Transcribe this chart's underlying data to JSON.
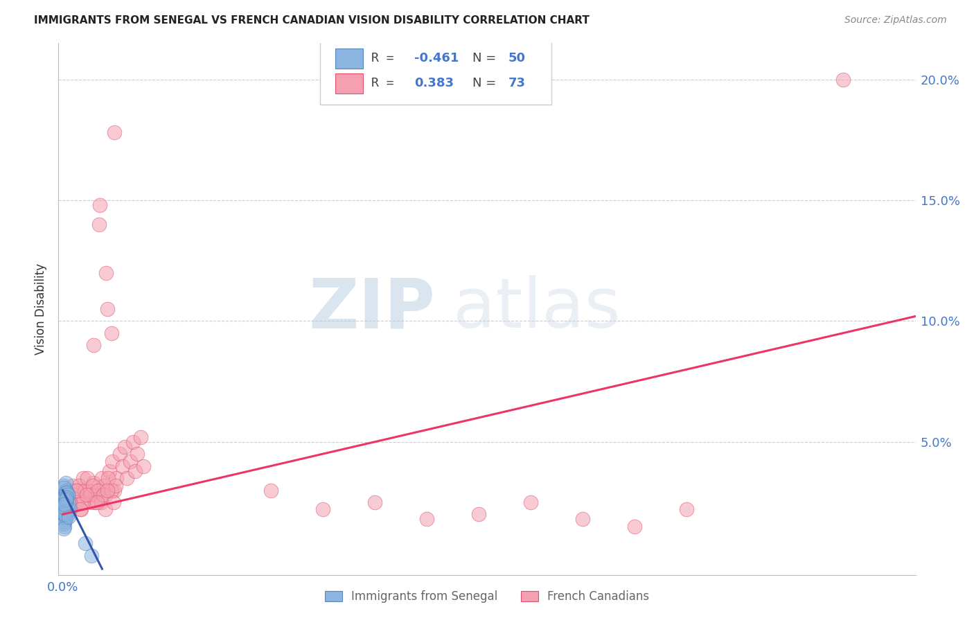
{
  "title": "IMMIGRANTS FROM SENEGAL VS FRENCH CANADIAN VISION DISABILITY CORRELATION CHART",
  "source": "Source: ZipAtlas.com",
  "ylabel": "Vision Disability",
  "yticks": [
    0.0,
    0.05,
    0.1,
    0.15,
    0.2
  ],
  "xlim": [
    -0.004,
    0.82
  ],
  "ylim": [
    -0.005,
    0.215
  ],
  "color_blue": "#8BB4E0",
  "color_pink": "#F4A0B0",
  "edge_blue": "#5588BB",
  "edge_pink": "#E05070",
  "trendline_blue": "#3355AA",
  "trendline_pink": "#EE3366",
  "watermark_color": "#C8D8E8",
  "blue_scatter": [
    [
      0.002,
      0.028
    ],
    [
      0.003,
      0.03
    ],
    [
      0.001,
      0.025
    ],
    [
      0.002,
      0.022
    ],
    [
      0.003,
      0.018
    ],
    [
      0.001,
      0.032
    ],
    [
      0.004,
      0.026
    ],
    [
      0.002,
      0.024
    ],
    [
      0.001,
      0.02
    ],
    [
      0.003,
      0.033
    ],
    [
      0.005,
      0.028
    ],
    [
      0.002,
      0.015
    ],
    [
      0.001,
      0.027
    ],
    [
      0.004,
      0.022
    ],
    [
      0.003,
      0.03
    ],
    [
      0.001,
      0.018
    ],
    [
      0.002,
      0.025
    ],
    [
      0.004,
      0.02
    ],
    [
      0.003,
      0.023
    ],
    [
      0.001,
      0.019
    ],
    [
      0.005,
      0.021
    ],
    [
      0.003,
      0.026
    ],
    [
      0.002,
      0.028
    ],
    [
      0.004,
      0.024
    ],
    [
      0.001,
      0.031
    ],
    [
      0.006,
      0.022
    ],
    [
      0.003,
      0.029
    ],
    [
      0.002,
      0.017
    ],
    [
      0.004,
      0.026
    ],
    [
      0.001,
      0.024
    ],
    [
      0.005,
      0.02
    ],
    [
      0.003,
      0.023
    ],
    [
      0.002,
      0.027
    ],
    [
      0.001,
      0.016
    ],
    [
      0.004,
      0.029
    ],
    [
      0.006,
      0.025
    ],
    [
      0.002,
      0.021
    ],
    [
      0.003,
      0.019
    ],
    [
      0.001,
      0.014
    ],
    [
      0.005,
      0.028
    ],
    [
      0.007,
      0.022
    ],
    [
      0.003,
      0.025
    ],
    [
      0.002,
      0.02
    ],
    [
      0.004,
      0.027
    ],
    [
      0.001,
      0.023
    ],
    [
      0.006,
      0.019
    ],
    [
      0.003,
      0.026
    ],
    [
      0.002,
      0.024
    ],
    [
      0.022,
      0.008
    ],
    [
      0.028,
      0.003
    ]
  ],
  "pink_scatter": [
    [
      0.005,
      0.03
    ],
    [
      0.008,
      0.028
    ],
    [
      0.01,
      0.032
    ],
    [
      0.012,
      0.025
    ],
    [
      0.015,
      0.03
    ],
    [
      0.018,
      0.022
    ],
    [
      0.02,
      0.035
    ],
    [
      0.022,
      0.028
    ],
    [
      0.025,
      0.03
    ],
    [
      0.028,
      0.025
    ],
    [
      0.03,
      0.033
    ],
    [
      0.032,
      0.028
    ],
    [
      0.035,
      0.03
    ],
    [
      0.038,
      0.035
    ],
    [
      0.04,
      0.032
    ],
    [
      0.042,
      0.028
    ],
    [
      0.045,
      0.038
    ],
    [
      0.048,
      0.042
    ],
    [
      0.05,
      0.03
    ],
    [
      0.052,
      0.035
    ],
    [
      0.055,
      0.045
    ],
    [
      0.058,
      0.04
    ],
    [
      0.06,
      0.048
    ],
    [
      0.062,
      0.035
    ],
    [
      0.065,
      0.042
    ],
    [
      0.068,
      0.05
    ],
    [
      0.07,
      0.038
    ],
    [
      0.072,
      0.045
    ],
    [
      0.075,
      0.052
    ],
    [
      0.078,
      0.04
    ],
    [
      0.003,
      0.025
    ],
    [
      0.006,
      0.022
    ],
    [
      0.009,
      0.03
    ],
    [
      0.011,
      0.028
    ],
    [
      0.014,
      0.025
    ],
    [
      0.016,
      0.032
    ],
    [
      0.019,
      0.025
    ],
    [
      0.021,
      0.03
    ],
    [
      0.024,
      0.035
    ],
    [
      0.027,
      0.028
    ],
    [
      0.029,
      0.032
    ],
    [
      0.031,
      0.025
    ],
    [
      0.034,
      0.03
    ],
    [
      0.037,
      0.025
    ],
    [
      0.039,
      0.028
    ],
    [
      0.041,
      0.022
    ],
    [
      0.044,
      0.035
    ],
    [
      0.047,
      0.03
    ],
    [
      0.049,
      0.025
    ],
    [
      0.051,
      0.032
    ],
    [
      0.002,
      0.028
    ],
    [
      0.007,
      0.025
    ],
    [
      0.013,
      0.03
    ],
    [
      0.017,
      0.022
    ],
    [
      0.023,
      0.028
    ],
    [
      0.033,
      0.025
    ],
    [
      0.043,
      0.03
    ],
    [
      0.036,
      0.148
    ],
    [
      0.05,
      0.178
    ],
    [
      0.035,
      0.14
    ],
    [
      0.047,
      0.095
    ],
    [
      0.043,
      0.105
    ],
    [
      0.03,
      0.09
    ],
    [
      0.042,
      0.12
    ],
    [
      0.2,
      0.03
    ],
    [
      0.25,
      0.022
    ],
    [
      0.3,
      0.025
    ],
    [
      0.35,
      0.018
    ],
    [
      0.4,
      0.02
    ],
    [
      0.45,
      0.025
    ],
    [
      0.5,
      0.018
    ],
    [
      0.55,
      0.015
    ],
    [
      0.6,
      0.022
    ],
    [
      0.75,
      0.2
    ]
  ]
}
